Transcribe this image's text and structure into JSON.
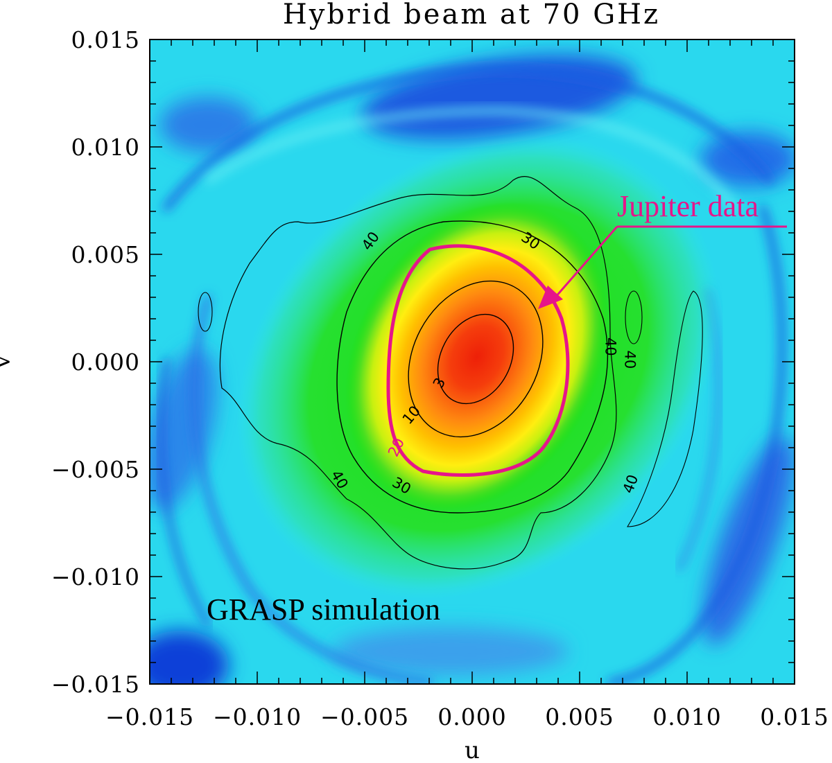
{
  "chart_data": {
    "type": "heatmap",
    "title": "Hybrid beam at 70 GHz",
    "xlabel": "u",
    "ylabel": "v",
    "xlim": [
      -0.015,
      0.015
    ],
    "ylim": [
      -0.015,
      0.015
    ],
    "x_ticks": [
      "−0.015",
      "−0.010",
      "−0.005",
      "0.000",
      "0.005",
      "0.010",
      "0.015"
    ],
    "y_ticks": [
      "0.015",
      "0.010",
      "0.005",
      "0.000",
      "−0.005",
      "−0.010",
      "−0.015"
    ],
    "x_tick_values": [
      -0.015,
      -0.01,
      -0.005,
      0.0,
      0.005,
      0.01,
      0.015
    ],
    "y_tick_values": [
      0.015,
      0.01,
      0.005,
      0.0,
      -0.005,
      -0.01,
      -0.015
    ],
    "beam_center": [
      0.0,
      0.0
    ],
    "beam_orientation_deg": 62,
    "contour_levels_db": [
      -3,
      -10,
      -20,
      -30,
      -40
    ],
    "contour_labels": [
      {
        "text": "3",
        "u": -0.0015,
        "v": -0.001
      },
      {
        "text": "10",
        "u": -0.0028,
        "v": -0.0025
      },
      {
        "text": "20",
        "u": -0.0035,
        "v": -0.004
      },
      {
        "text": "30",
        "u": 0.0027,
        "v": 0.0056
      },
      {
        "text": "30",
        "u": -0.0033,
        "v": -0.0058
      },
      {
        "text": "40",
        "u": -0.0047,
        "v": 0.0056
      },
      {
        "text": "40",
        "u": 0.0064,
        "v": 0.0007
      },
      {
        "text": "40",
        "u": 0.0073,
        "v": 0.0001
      },
      {
        "text": "40",
        "u": -0.0062,
        "v": -0.0055
      },
      {
        "text": "40",
        "u": 0.0074,
        "v": -0.0057
      }
    ],
    "annotations": [
      {
        "text": "Jupiter data",
        "color": "#e6158a"
      },
      {
        "text": "GRASP simulation",
        "color": "#000000"
      }
    ],
    "highlight_contour": {
      "level_db": -20,
      "color": "#e6158a",
      "source": "Jupiter data"
    },
    "colormap": [
      "#1030d8",
      "#20c8f0",
      "#30f0e8",
      "#28e060",
      "#20e010",
      "#b8f008",
      "#ffe000",
      "#ffb000",
      "#ff6010",
      "#ee2008"
    ]
  }
}
